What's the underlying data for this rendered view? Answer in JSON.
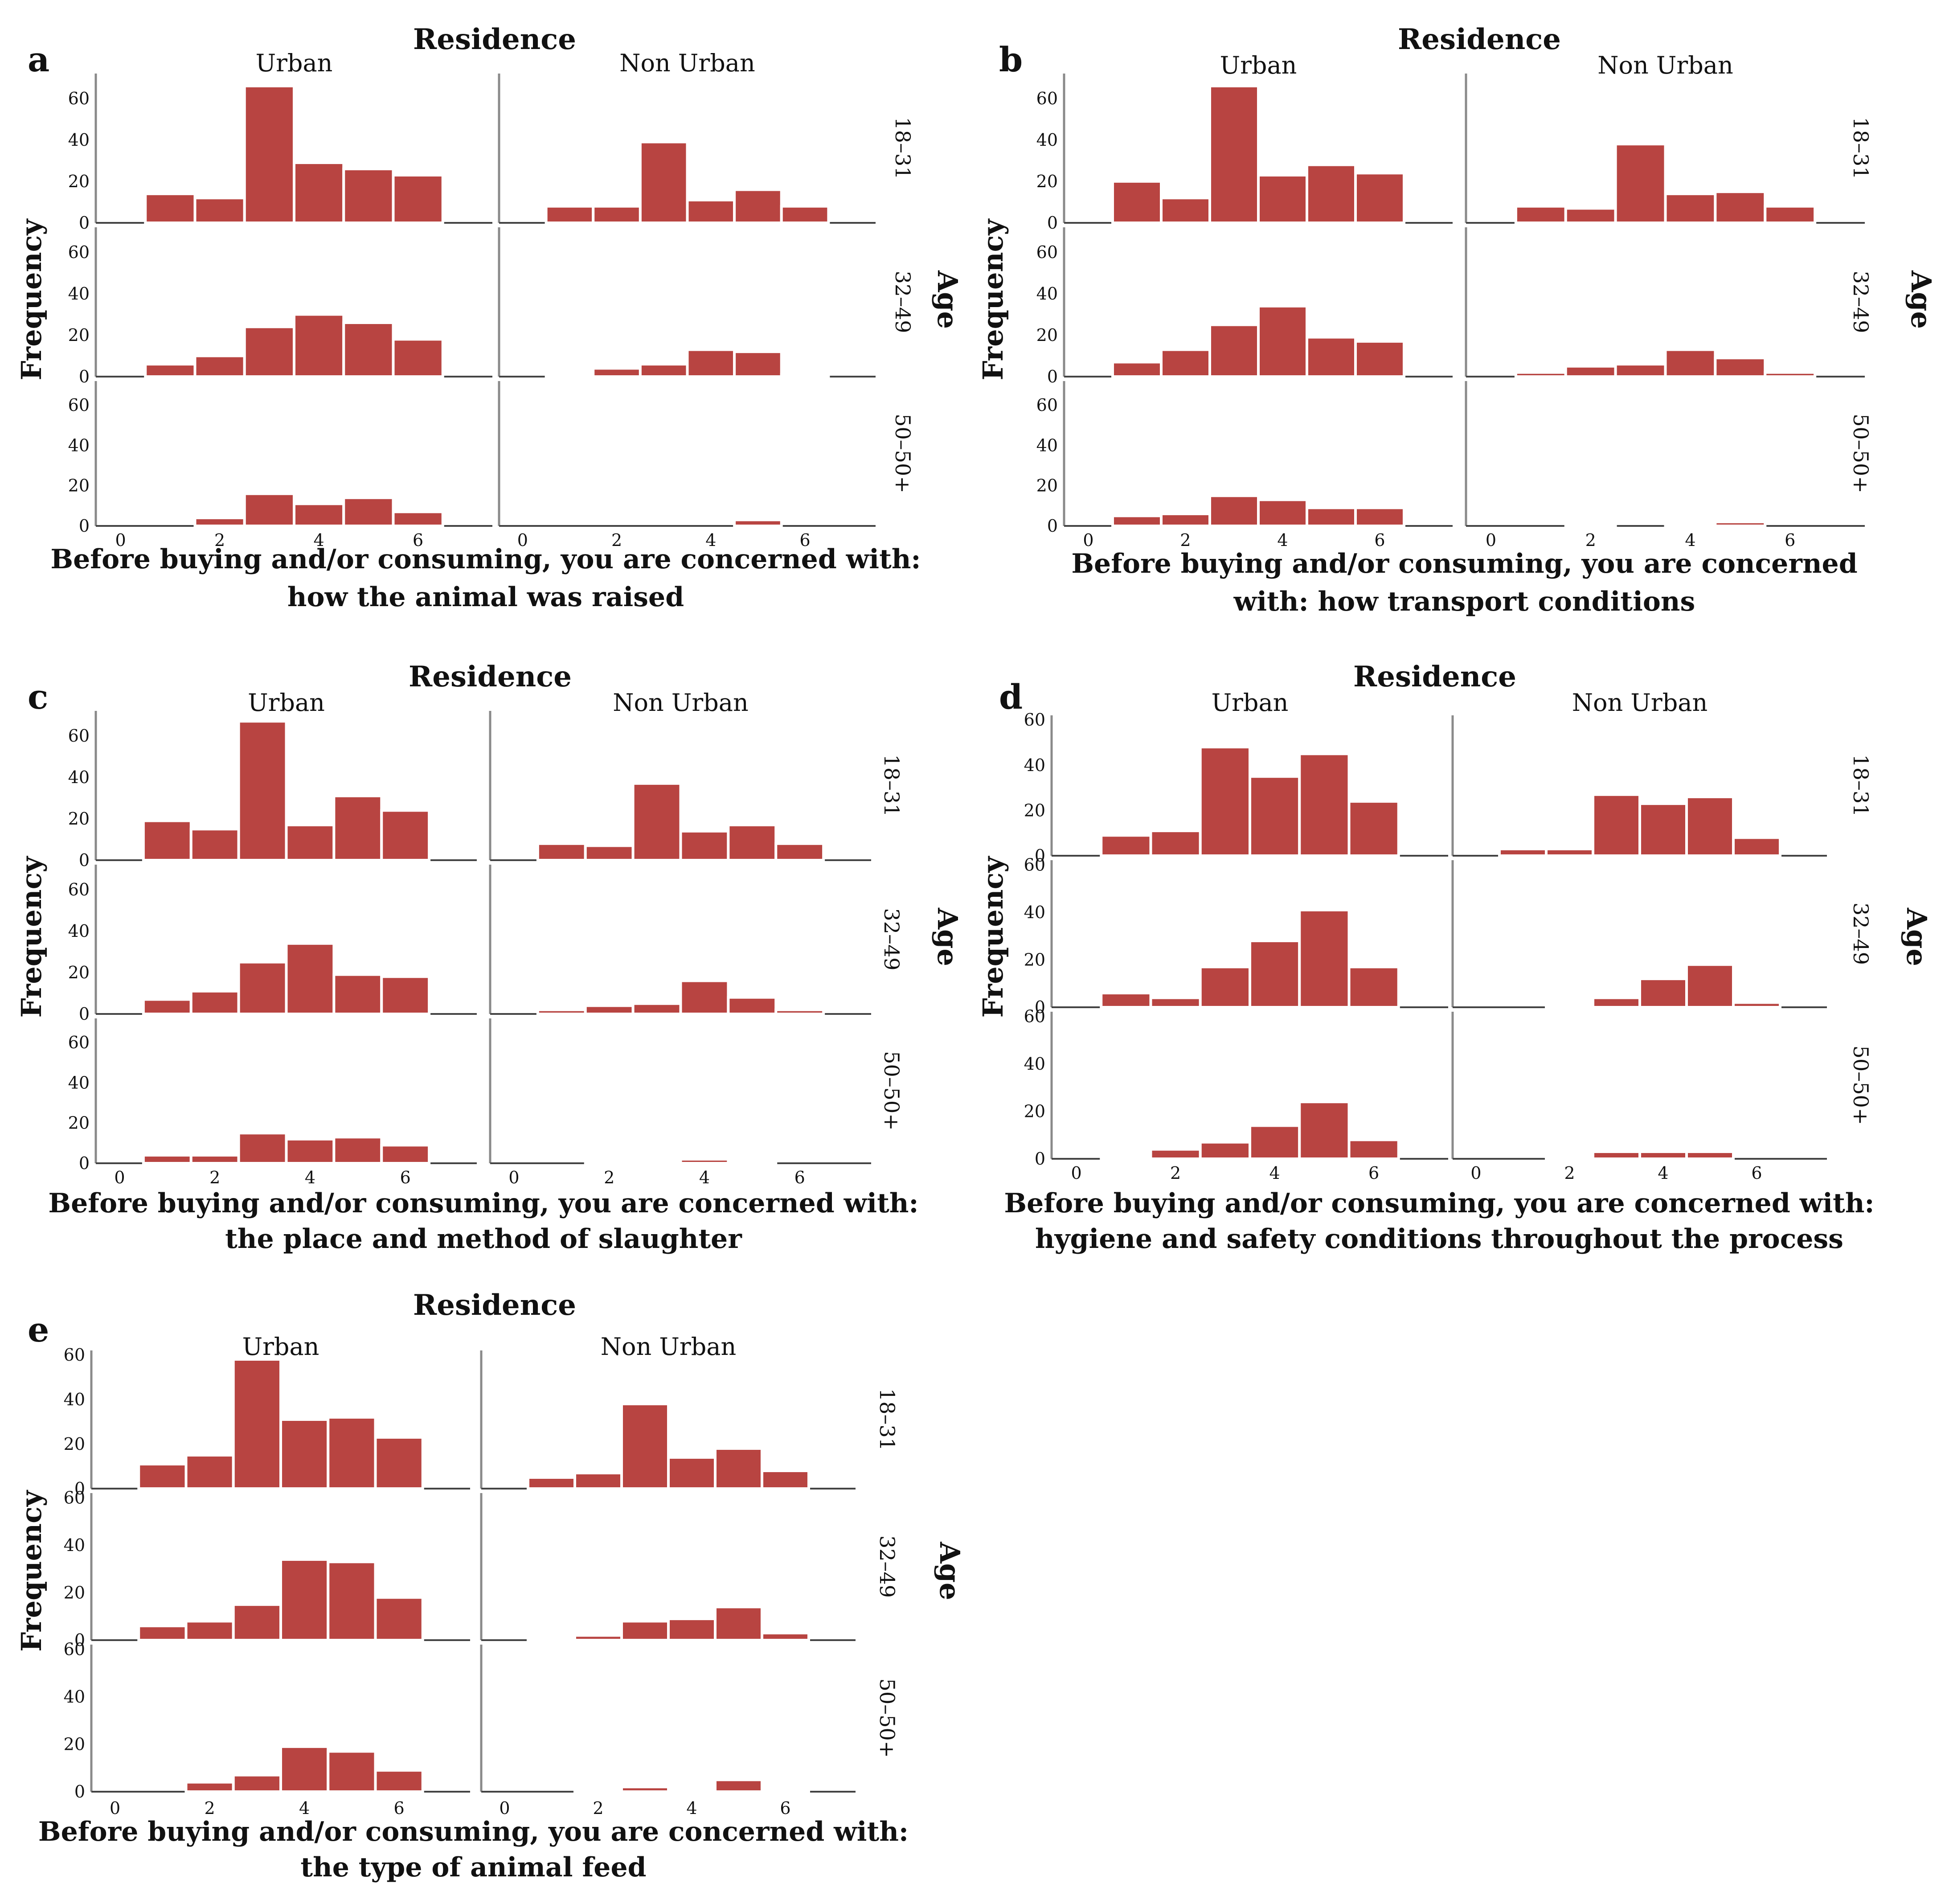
{
  "chart_data": [
    {
      "type": "bar",
      "panel_label": "a",
      "title": "Residence",
      "columns": [
        "Urban",
        "Non Urban"
      ],
      "rows": [
        "18–31",
        "32–49",
        "50–50+"
      ],
      "row_title": "Age",
      "ylabel": "Frequency",
      "xlabel": [
        "Before buying and/or consuming, you are concerned with:",
        "how the animal was raised"
      ],
      "x_ticks": [
        0,
        2,
        4,
        6
      ],
      "y_ticks": [
        0,
        20,
        40,
        60
      ],
      "xlim": [
        -0.5,
        7.5
      ],
      "ylim": [
        0,
        72
      ],
      "bin_centers": [
        1,
        2,
        3,
        4,
        5,
        6
      ],
      "values": {
        "Urban": [
          [
            14,
            12,
            66,
            29,
            26,
            23
          ],
          [
            6,
            10,
            24,
            30,
            26,
            18
          ],
          [
            0,
            4,
            16,
            11,
            14,
            7
          ]
        ],
        "Non Urban": [
          [
            8,
            8,
            39,
            11,
            16,
            8
          ],
          [
            1,
            4,
            6,
            13,
            12,
            1
          ],
          [
            0,
            0,
            0,
            0,
            3,
            0
          ]
        ]
      }
    },
    {
      "type": "bar",
      "panel_label": "b",
      "title": "Residence",
      "columns": [
        "Urban",
        "Non Urban"
      ],
      "rows": [
        "18–31",
        "32–49",
        "50–50+"
      ],
      "row_title": "Age",
      "ylabel": "Frequency",
      "xlabel": [
        "Before buying and/or consuming, you are concerned",
        "with: how transport conditions"
      ],
      "x_ticks": [
        0,
        2,
        4,
        6
      ],
      "y_ticks": [
        0,
        20,
        40,
        60
      ],
      "xlim": [
        -0.5,
        7.5
      ],
      "ylim": [
        0,
        72
      ],
      "bin_centers": [
        1,
        2,
        3,
        4,
        5,
        6
      ],
      "values": {
        "Urban": [
          [
            20,
            12,
            66,
            23,
            28,
            24
          ],
          [
            7,
            13,
            25,
            34,
            19,
            17
          ],
          [
            5,
            6,
            15,
            13,
            9,
            9
          ]
        ],
        "Non Urban": [
          [
            8,
            7,
            38,
            14,
            15,
            8
          ],
          [
            2,
            5,
            6,
            13,
            9,
            2
          ],
          [
            0,
            1,
            0,
            1,
            2,
            0
          ]
        ]
      }
    },
    {
      "type": "bar",
      "panel_label": "c",
      "title": "Residence",
      "columns": [
        "Urban",
        "Non Urban"
      ],
      "rows": [
        "18–31",
        "32–49",
        "50–50+"
      ],
      "row_title": "Age",
      "ylabel": "Frequency",
      "xlabel": [
        "Before buying and/or consuming, you are concerned with:",
        "the place and method of slaughter"
      ],
      "x_ticks": [
        0,
        2,
        4,
        6
      ],
      "y_ticks": [
        0,
        20,
        40,
        60
      ],
      "xlim": [
        -0.5,
        7.5
      ],
      "ylim": [
        0,
        72
      ],
      "bin_centers": [
        1,
        2,
        3,
        4,
        5,
        6
      ],
      "values": {
        "Urban": [
          [
            19,
            15,
            67,
            17,
            31,
            24
          ],
          [
            7,
            11,
            25,
            34,
            19,
            18
          ],
          [
            4,
            4,
            15,
            12,
            13,
            9
          ]
        ],
        "Non Urban": [
          [
            8,
            7,
            37,
            14,
            17,
            8
          ],
          [
            2,
            4,
            5,
            16,
            8,
            2
          ],
          [
            0,
            1,
            1,
            2,
            1,
            0
          ]
        ]
      }
    },
    {
      "type": "bar",
      "panel_label": "d",
      "title": "Residence",
      "columns": [
        "Urban",
        "Non Urban"
      ],
      "rows": [
        "18–31",
        "32–49",
        "50–50+"
      ],
      "row_title": "Age",
      "ylabel": "Frequency",
      "xlabel": [
        "Before buying and/or consuming, you are concerned with:",
        "hygiene and safety conditions throughout the process"
      ],
      "x_ticks": [
        0,
        2,
        4,
        6
      ],
      "y_ticks": [
        0,
        20,
        40,
        60
      ],
      "xlim": [
        -0.5,
        7.5
      ],
      "ylim": [
        0,
        62
      ],
      "bin_centers": [
        1,
        2,
        3,
        4,
        5,
        6
      ],
      "values": {
        "Urban": [
          [
            9,
            11,
            48,
            35,
            45,
            24
          ],
          [
            6,
            4,
            17,
            28,
            41,
            17
          ],
          [
            1,
            4,
            7,
            14,
            24,
            8
          ]
        ],
        "Non Urban": [
          [
            3,
            3,
            27,
            23,
            26,
            8
          ],
          [
            0,
            1,
            4,
            12,
            18,
            2
          ],
          [
            0,
            1,
            3,
            3,
            3,
            0
          ]
        ]
      }
    },
    {
      "type": "bar",
      "panel_label": "e",
      "title": "Residence",
      "columns": [
        "Urban",
        "Non Urban"
      ],
      "rows": [
        "18–31",
        "32–49",
        "50–50+"
      ],
      "row_title": "Age",
      "ylabel": "Frequency",
      "xlabel": [
        "Before buying and/or consuming, you are concerned with:",
        "the type of animal feed"
      ],
      "x_ticks": [
        0,
        2,
        4,
        6
      ],
      "y_ticks": [
        0,
        20,
        40,
        60
      ],
      "xlim": [
        -0.5,
        7.5
      ],
      "ylim": [
        0,
        62
      ],
      "bin_centers": [
        1,
        2,
        3,
        4,
        5,
        6
      ],
      "values": {
        "Urban": [
          [
            11,
            15,
            58,
            31,
            32,
            23
          ],
          [
            6,
            8,
            15,
            34,
            33,
            18
          ],
          [
            0,
            4,
            7,
            19,
            17,
            9
          ]
        ],
        "Non Urban": [
          [
            5,
            7,
            38,
            14,
            18,
            8
          ],
          [
            1,
            2,
            8,
            9,
            14,
            3
          ],
          [
            0,
            1,
            2,
            1,
            5,
            1
          ]
        ]
      }
    }
  ]
}
